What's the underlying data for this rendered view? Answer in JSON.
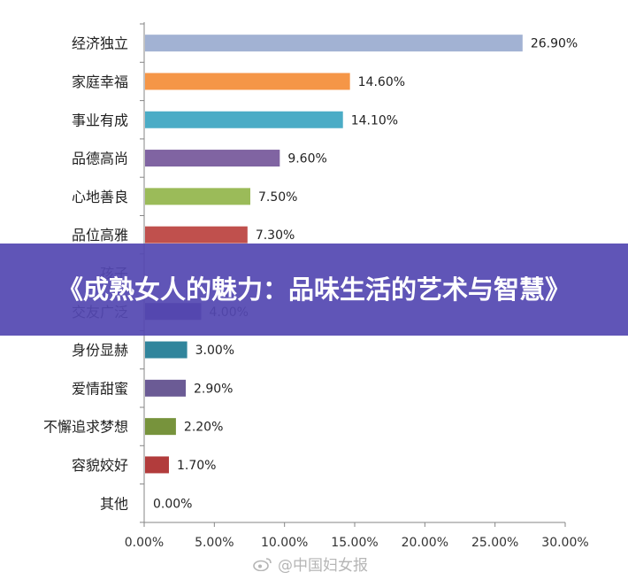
{
  "chart_data": {
    "type": "bar",
    "orientation": "horizontal",
    "categories": [
      "经济独立",
      "家庭幸福",
      "事业有成",
      "品德高尚",
      "心地善良",
      "品位高雅",
      "孩子",
      "交友广泛",
      "身份显赫",
      "爱情甜蜜",
      "不懈追求梦想",
      "容貌姣好",
      "其他"
    ],
    "values": [
      26.9,
      14.6,
      14.1,
      9.6,
      7.5,
      7.3,
      null,
      4.0,
      3.0,
      2.9,
      2.2,
      1.7,
      0.0
    ],
    "value_labels": [
      "26.90%",
      "14.60%",
      "14.10%",
      "9.60%",
      "7.50%",
      "7.30%",
      "",
      "4.00%",
      "3.00%",
      "2.90%",
      "2.20%",
      "1.70%",
      "0.00%"
    ],
    "bar_colors": [
      "#A2B2D3",
      "#F59647",
      "#4BACC6",
      "#8064A2",
      "#9BBB59",
      "#C0504D",
      "#4F81BD",
      "#5B3A8E",
      "#31859C",
      "#6B5B95",
      "#77933C",
      "#B23C3C",
      "#4F81BD"
    ],
    "xlim": [
      0,
      30
    ],
    "x_ticks": [
      "0.00%",
      "5.00%",
      "10.00%",
      "15.00%",
      "20.00%",
      "25.00%",
      "30.00%"
    ],
    "grid": false,
    "legend": "none"
  },
  "banner": {
    "title": "《成熟女人的魅力：品味生活的艺术与智慧》"
  },
  "watermark": {
    "text": "@中国妇女报",
    "icon": "weibo-icon"
  }
}
